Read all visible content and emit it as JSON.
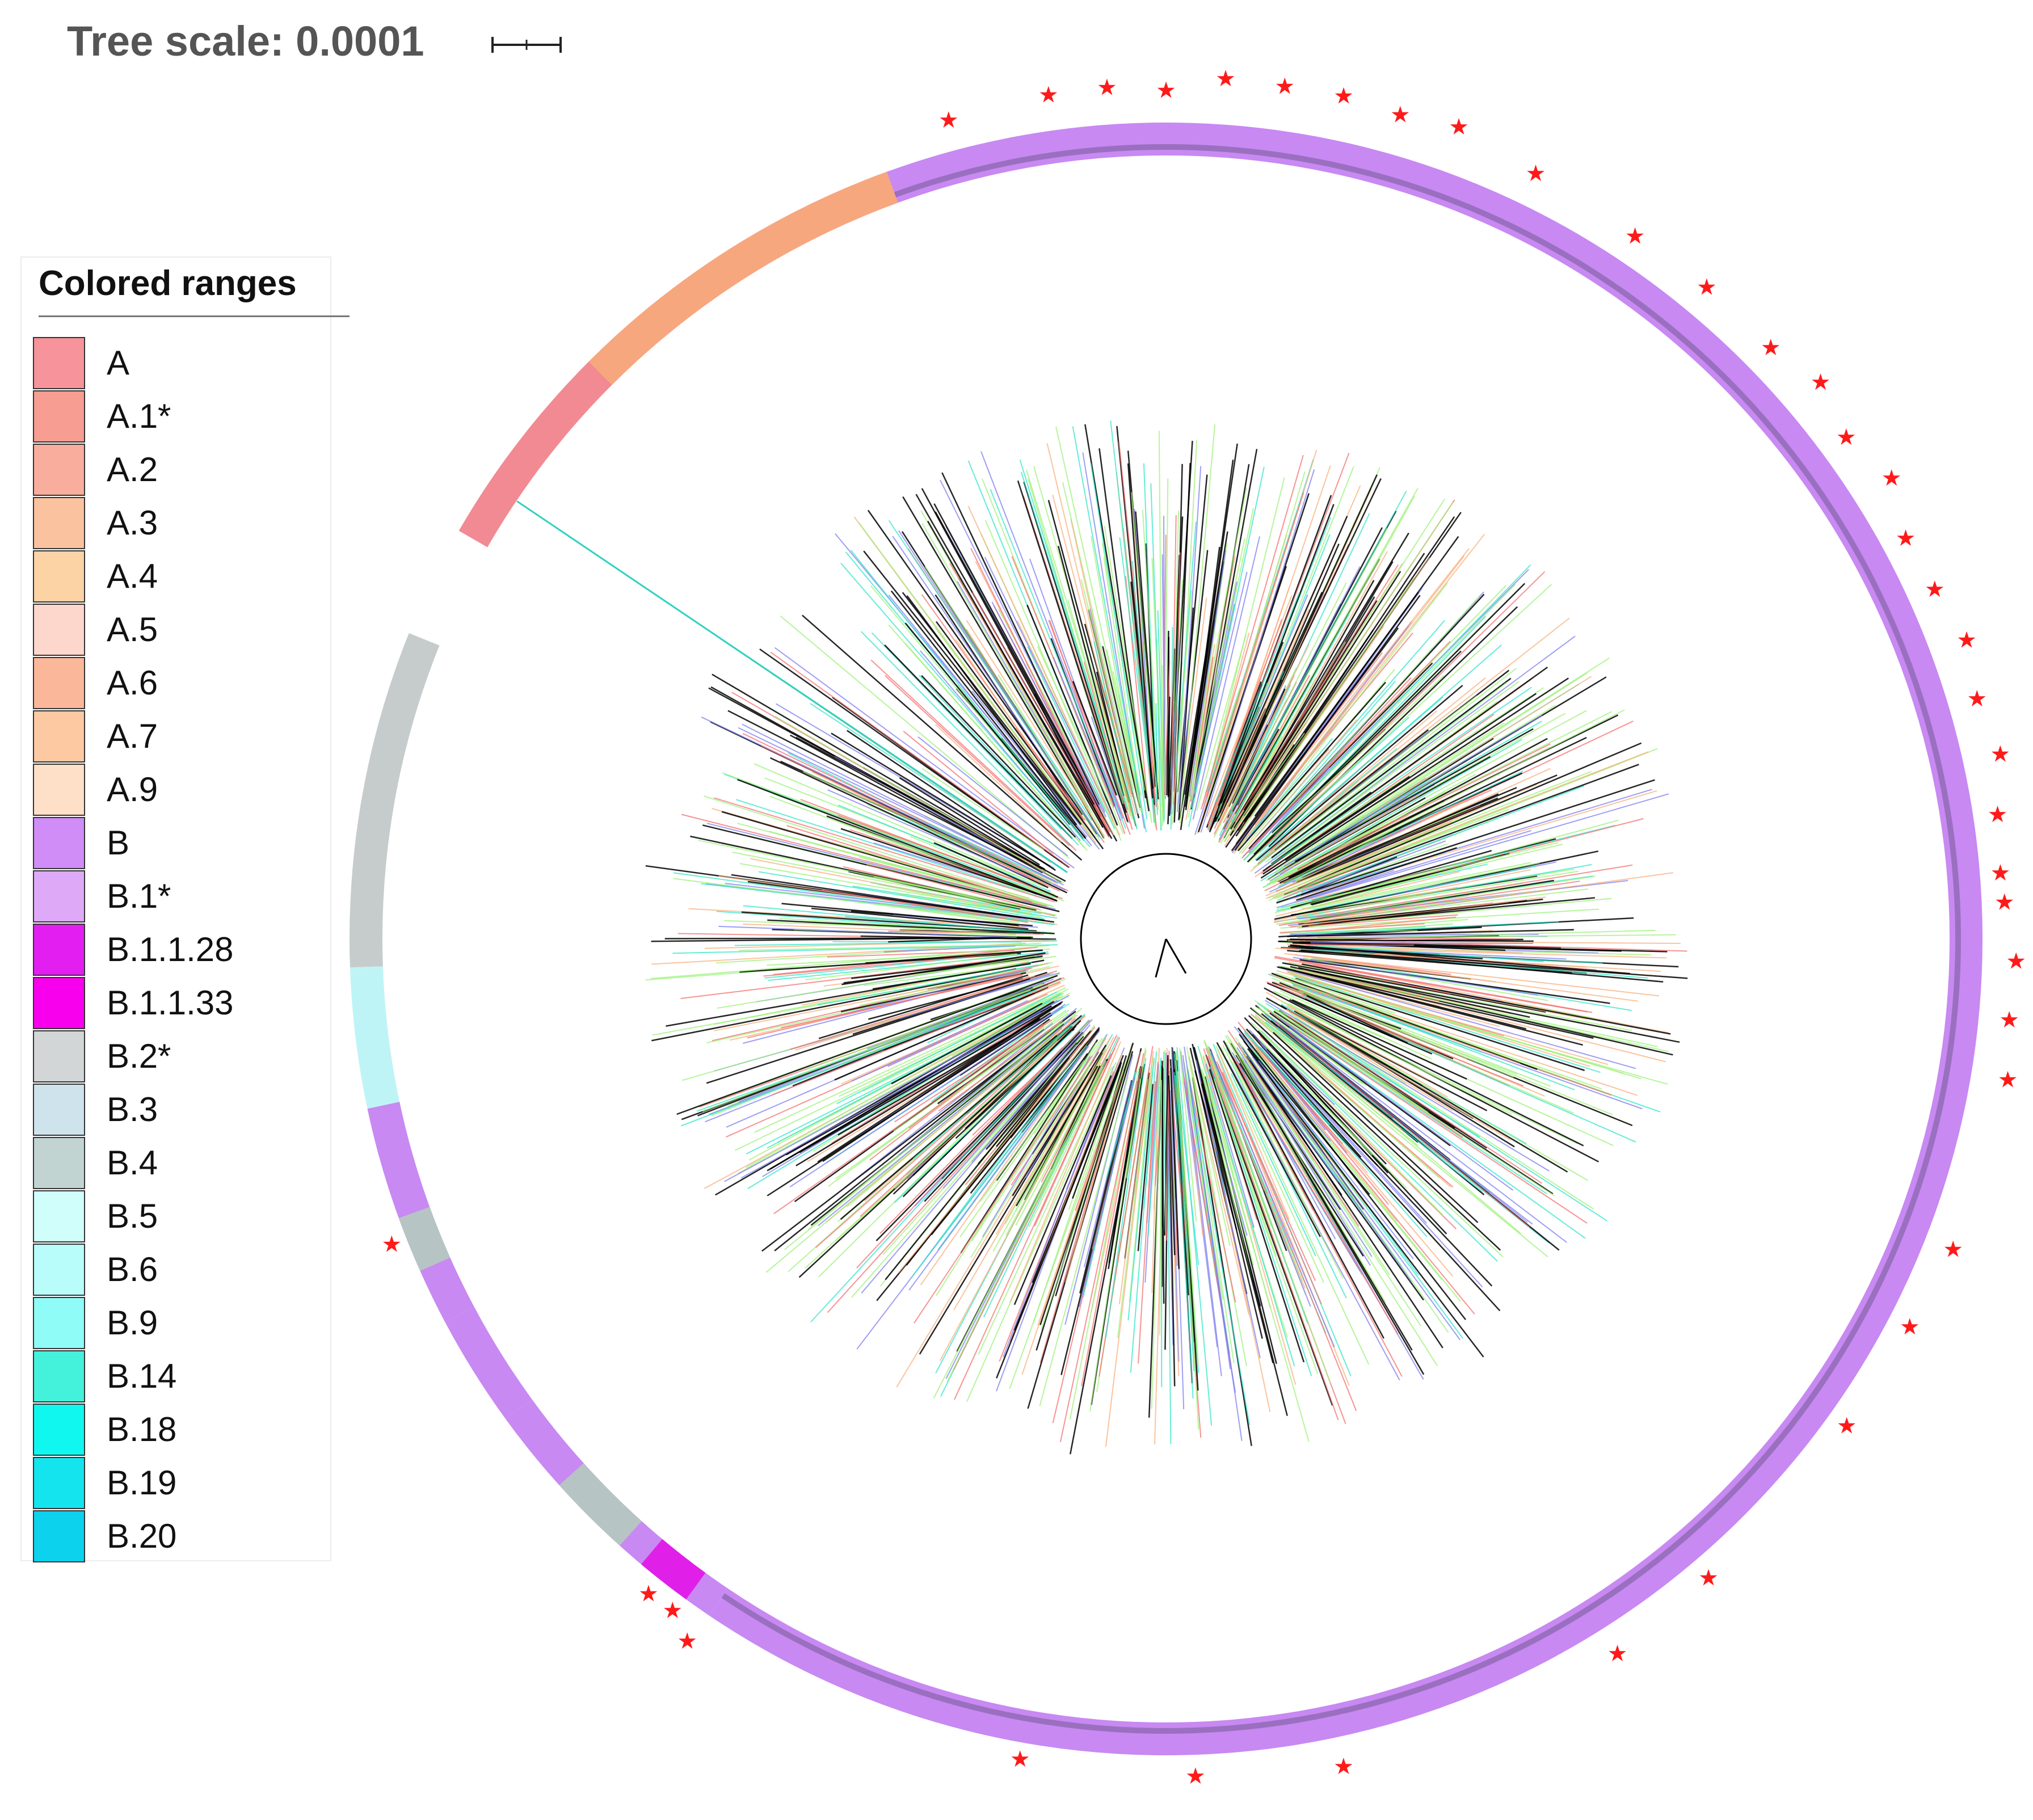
{
  "header": {
    "tree_scale_label": "Tree scale: 0.0001"
  },
  "legend": {
    "title": "Colored ranges",
    "items": [
      {
        "label": "A",
        "color": "#f7939b"
      },
      {
        "label": "A.1*",
        "color": "#f79d92"
      },
      {
        "label": "A.2",
        "color": "#f9ad9c"
      },
      {
        "label": "A.3",
        "color": "#fbc29f"
      },
      {
        "label": "A.4",
        "color": "#fcd3a5"
      },
      {
        "label": "A.5",
        "color": "#fdd6cc"
      },
      {
        "label": "A.6",
        "color": "#fbb79a"
      },
      {
        "label": "A.7",
        "color": "#fcc9a3"
      },
      {
        "label": "A.9",
        "color": "#fde0c7"
      },
      {
        "label": "B",
        "color": "#d08cf7"
      },
      {
        "label": "B.1*",
        "color": "#deaaf8"
      },
      {
        "label": "B.1.1.28",
        "color": "#e21ef1"
      },
      {
        "label": "B.1.1.33",
        "color": "#f800ee"
      },
      {
        "label": "B.2*",
        "color": "#d2d6d6"
      },
      {
        "label": "B.3",
        "color": "#cfe3ec"
      },
      {
        "label": "B.4",
        "color": "#c2d4d2"
      },
      {
        "label": "B.5",
        "color": "#cffefb"
      },
      {
        "label": "B.6",
        "color": "#b9fdfb"
      },
      {
        "label": "B.9",
        "color": "#8ffcf7"
      },
      {
        "label": "B.14",
        "color": "#44f2dc"
      },
      {
        "label": "B.18",
        "color": "#0ff7ef"
      },
      {
        "label": "B.19",
        "color": "#13e4ed"
      },
      {
        "label": "B.20",
        "color": "#0cd2ee"
      }
    ]
  },
  "colors": {
    "ring_B": "#c889f2",
    "ring_A_start": "#f28a93",
    "ring_A_end": "#f7a77e",
    "ring_B2": "#c6cccc",
    "ring_B5": "#bff4f6",
    "ring_B4": "#b7c4c4",
    "ring_B1128": "#e01fe8",
    "marker": "#ff1a1a",
    "branch_dark": "#000000",
    "branch_green": "#9ef27a",
    "branch_red": "#f46f6f",
    "branch_orange": "#f8b07d",
    "branch_blue": "#7d7df0",
    "branch_teal": "#33e6c8",
    "scale_text": "#555555"
  }
}
